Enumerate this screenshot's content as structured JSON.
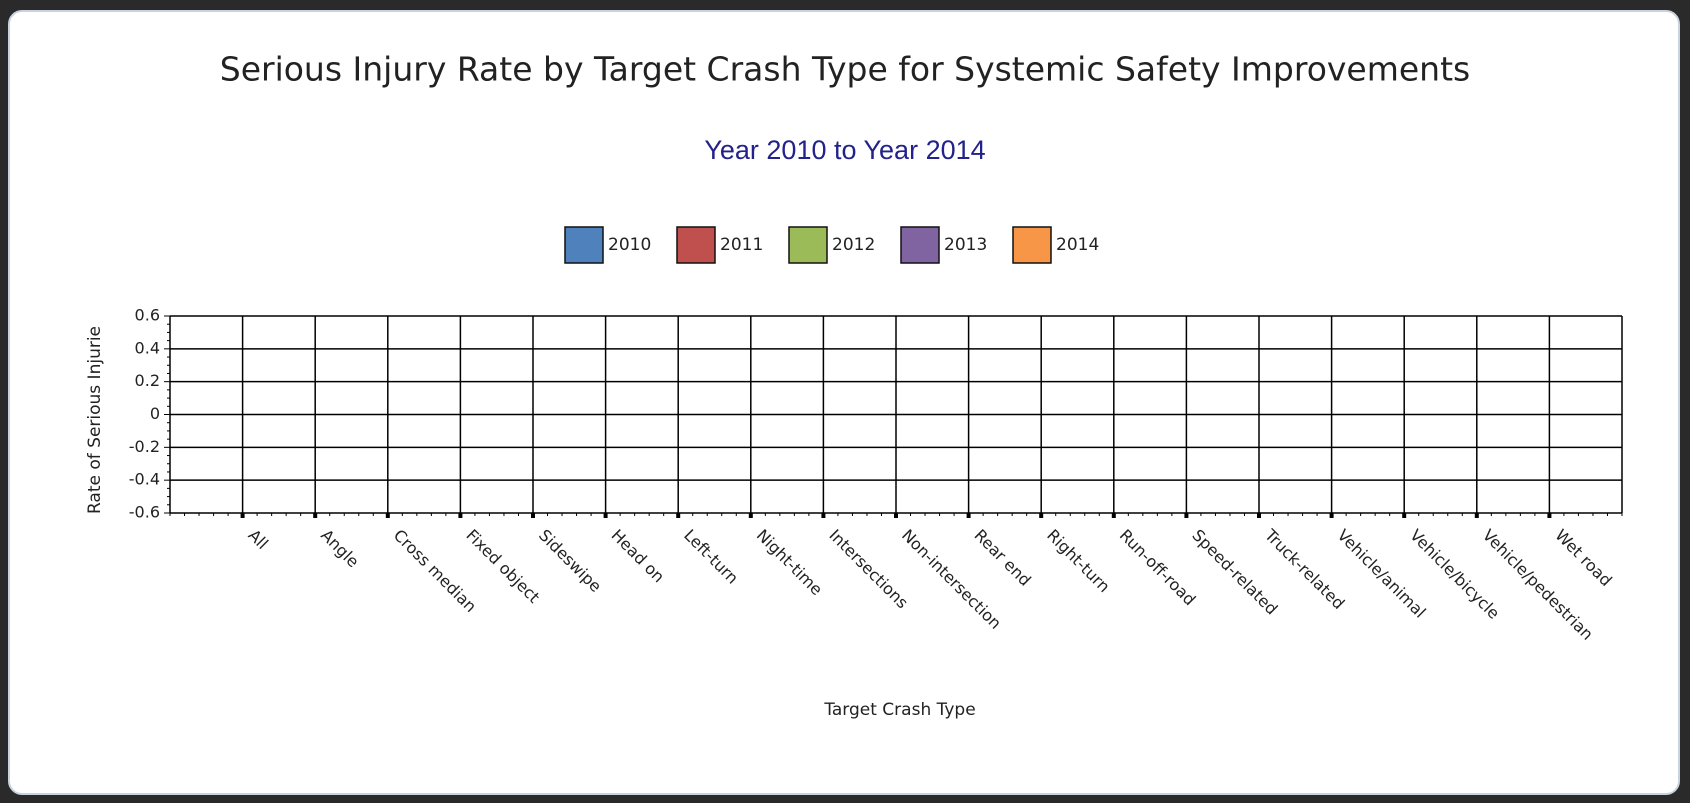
{
  "chart_data": {
    "type": "bar",
    "title": "Serious Injury Rate by Target Crash Type for Systemic Safety Improvements",
    "subtitle": "Year 2010 to Year 2014",
    "x_label": "Target Crash Type",
    "y_label": "Rate of Serious Injurie",
    "categories": [
      "All",
      "Angle",
      "Cross median",
      "Fixed object",
      "Sideswipe",
      "Head on",
      "Left-turn",
      "Night-time",
      "Intersections",
      "Non-intersection",
      "Rear end",
      "Right-turn",
      "Run-off-road",
      "Speed-related",
      "Truck-related",
      "Vehicle/animal",
      "Vehicle/bicycle",
      "Vehicle/pedestrian",
      "Wet road"
    ],
    "series": [
      {
        "name": "2010",
        "color": "#4f81bd",
        "values": [
          null,
          null,
          null,
          null,
          null,
          null,
          null,
          null,
          null,
          null,
          null,
          null,
          null,
          null,
          null,
          null,
          null,
          null,
          null
        ]
      },
      {
        "name": "2011",
        "color": "#c0504d",
        "values": [
          null,
          null,
          null,
          null,
          null,
          null,
          null,
          null,
          null,
          null,
          null,
          null,
          null,
          null,
          null,
          null,
          null,
          null,
          null
        ]
      },
      {
        "name": "2012",
        "color": "#9bbb59",
        "values": [
          null,
          null,
          null,
          null,
          null,
          null,
          null,
          null,
          null,
          null,
          null,
          null,
          null,
          null,
          null,
          null,
          null,
          null,
          null
        ]
      },
      {
        "name": "2013",
        "color": "#8064a2",
        "values": [
          null,
          null,
          null,
          null,
          null,
          null,
          null,
          null,
          null,
          null,
          null,
          null,
          null,
          null,
          null,
          null,
          null,
          null,
          null
        ]
      },
      {
        "name": "2014",
        "color": "#f79646",
        "values": [
          null,
          null,
          null,
          null,
          null,
          null,
          null,
          null,
          null,
          null,
          null,
          null,
          null,
          null,
          null,
          null,
          null,
          null,
          null
        ]
      }
    ],
    "ylim": [
      -0.6,
      0.6
    ],
    "yticks": [
      -0.6,
      -0.4,
      -0.2,
      0,
      0.2,
      0.4,
      0.6
    ],
    "grid": true,
    "legend": "top"
  }
}
